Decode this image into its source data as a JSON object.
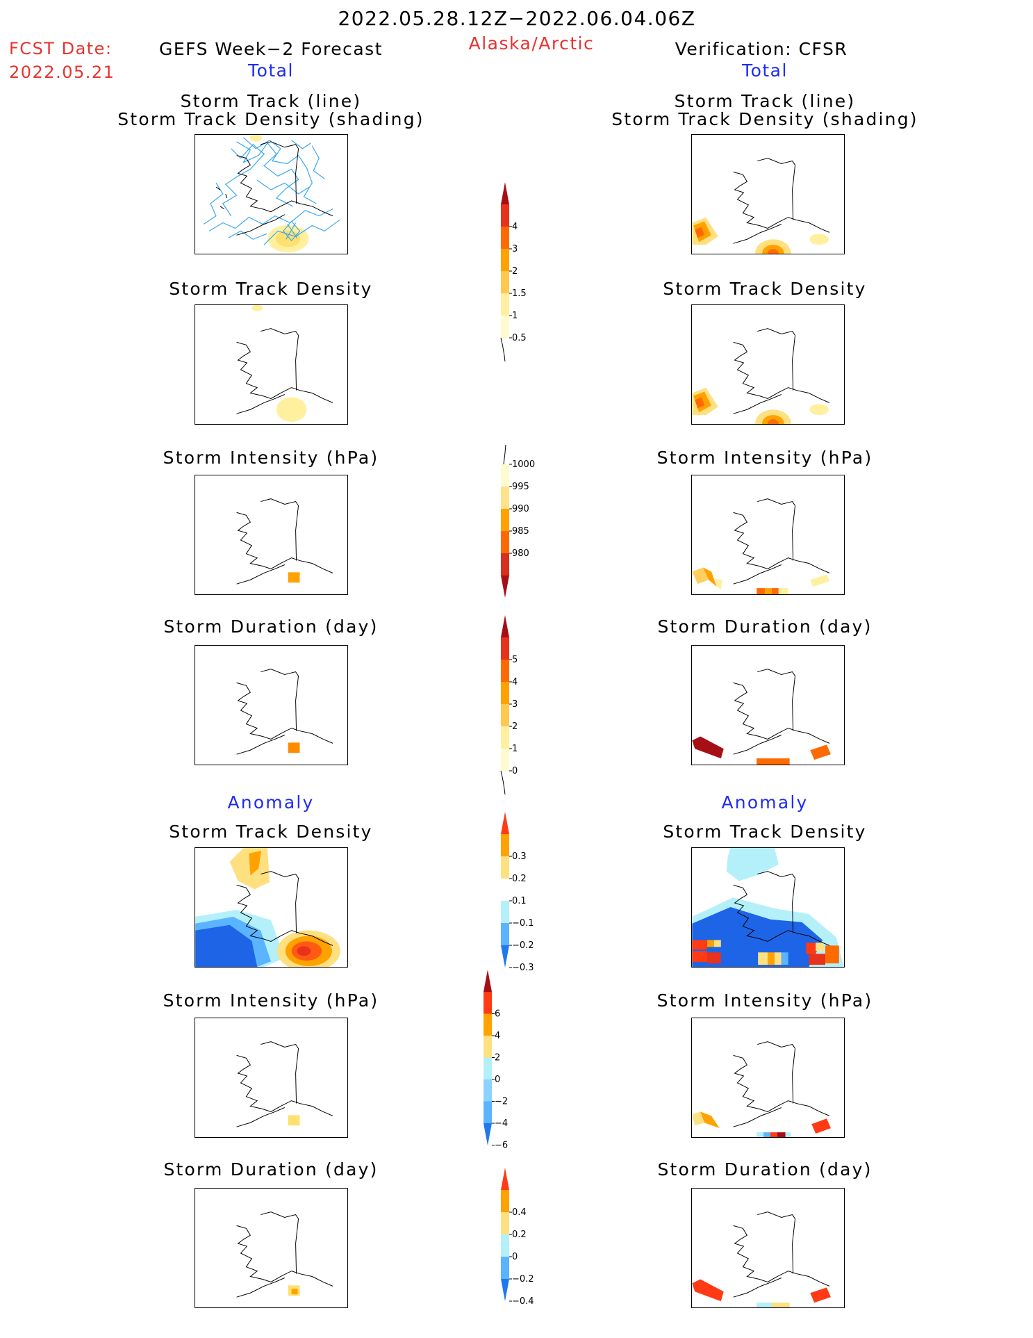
{
  "header": {
    "date_range": "2022.05.28.12Z−2022.06.04.06Z",
    "fcst_date_label": "FCST Date:",
    "fcst_date_value": "2022.05.21",
    "left_title": "GEFS Week−2 Forecast",
    "region": "Alaska/Arctic",
    "right_title": "Verification: CFSR",
    "left_sub": "Total",
    "right_sub": "Total"
  },
  "sections": {
    "anomaly_left": "Anomaly",
    "anomaly_right": "Anomaly"
  },
  "panels": {
    "total_track_line": [
      "Storm Track (line)",
      "Storm Track Density (shading)"
    ],
    "total_density": "Storm Track Density",
    "total_intensity": "Storm Intensity (hPa)",
    "total_duration": "Storm Duration (day)",
    "anom_density": "Storm Track Density",
    "anom_intensity": "Storm Intensity (hPa)",
    "anom_duration": "Storm Duration (day)"
  },
  "colorbars": {
    "density": {
      "labels": [
        "4",
        "3",
        "2",
        "1.5",
        "1",
        "0.5"
      ],
      "colors": [
        "#a50f15",
        "#e8321c",
        "#ff6a00",
        "#ffa200",
        "#ffc850",
        "#fff0a0",
        "#fffbd0"
      ]
    },
    "intensity": {
      "labels": [
        "1000",
        "995",
        "990",
        "985",
        "980"
      ],
      "colors": [
        "#fffbd0",
        "#ffe28a",
        "#ffa200",
        "#ff6a00",
        "#d7301f",
        "#a50f15"
      ]
    },
    "duration": {
      "labels": [
        "5",
        "4",
        "3",
        "2",
        "1",
        "0"
      ],
      "colors": [
        "#a50f15",
        "#e8321c",
        "#ff6a00",
        "#ffa200",
        "#ffc850",
        "#fff0a0",
        "#fffbd0"
      ]
    },
    "anom_density": {
      "labels": [
        "0.3",
        "0.2",
        "0.1",
        "−0.1",
        "−0.2",
        "−0.3"
      ],
      "colors": [
        "#ff3a14",
        "#ffa200",
        "#ffe080",
        "#ffffff",
        "#b4f0fa",
        "#5ab4ff",
        "#1e78f0"
      ]
    },
    "anom_intensity": {
      "labels": [
        "6",
        "4",
        "2",
        "0",
        "−2",
        "−4",
        "−6"
      ],
      "colors": [
        "#a50f15",
        "#ff3a14",
        "#ffa200",
        "#ffe080",
        "#b4f0fa",
        "#8cd2ff",
        "#5ab4ff",
        "#1e78f0"
      ]
    },
    "anom_duration": {
      "labels": [
        "0.4",
        "0.2",
        "0",
        "−0.2",
        "−0.4"
      ],
      "colors": [
        "#ff3a14",
        "#ffa200",
        "#ffe080",
        "#b4f0fa",
        "#5ab4ff",
        "#1e78f0"
      ]
    }
  }
}
